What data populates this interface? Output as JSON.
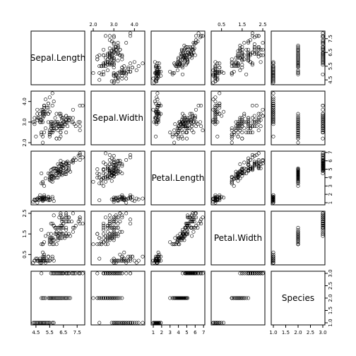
{
  "chart_data": {
    "type": "scatter",
    "kind": "scatterplot-matrix",
    "title": "",
    "grid": false,
    "variables": [
      {
        "name": "Sepal.Length",
        "range": [
          4.3,
          7.9
        ],
        "ticks": [
          {
            "v": 4.5,
            "label": "4.5"
          },
          {
            "v": 5.5,
            "label": "5.5"
          },
          {
            "v": 6.5,
            "label": "6.5"
          },
          {
            "v": 7.5,
            "label": "7.5"
          }
        ]
      },
      {
        "name": "Sepal.Width",
        "range": [
          2.0,
          4.4
        ],
        "ticks": [
          {
            "v": 2.0,
            "label": "2.0"
          },
          {
            "v": 3.0,
            "label": "3.0"
          },
          {
            "v": 4.0,
            "label": "4.0"
          }
        ]
      },
      {
        "name": "Petal.Length",
        "range": [
          1.0,
          6.9
        ],
        "ticks": [
          {
            "v": 1,
            "label": "1"
          },
          {
            "v": 2,
            "label": "2"
          },
          {
            "v": 3,
            "label": "3"
          },
          {
            "v": 4,
            "label": "4"
          },
          {
            "v": 5,
            "label": "5"
          },
          {
            "v": 6,
            "label": "6"
          },
          {
            "v": 7,
            "label": "7"
          }
        ]
      },
      {
        "name": "Petal.Width",
        "range": [
          0.1,
          2.5
        ],
        "ticks": [
          {
            "v": 0.5,
            "label": "0.5"
          },
          {
            "v": 1.5,
            "label": "1.5"
          },
          {
            "v": 2.5,
            "label": "2.5"
          }
        ]
      },
      {
        "name": "Species",
        "range": [
          1,
          3
        ],
        "ticks": [
          {
            "v": 1.0,
            "label": "1.0"
          },
          {
            "v": 1.5,
            "label": "1.5"
          },
          {
            "v": 2.0,
            "label": "2.0"
          },
          {
            "v": 2.5,
            "label": "2.5"
          },
          {
            "v": 3.0,
            "label": "3.0"
          }
        ]
      }
    ],
    "observations": [
      [
        5.1,
        3.5,
        1.4,
        0.2,
        1
      ],
      [
        4.9,
        3.0,
        1.4,
        0.2,
        1
      ],
      [
        4.7,
        3.2,
        1.3,
        0.2,
        1
      ],
      [
        4.6,
        3.1,
        1.5,
        0.2,
        1
      ],
      [
        5.0,
        3.6,
        1.4,
        0.2,
        1
      ],
      [
        5.4,
        3.9,
        1.7,
        0.4,
        1
      ],
      [
        4.6,
        3.4,
        1.4,
        0.3,
        1
      ],
      [
        5.0,
        3.4,
        1.5,
        0.2,
        1
      ],
      [
        4.4,
        2.9,
        1.4,
        0.2,
        1
      ],
      [
        4.9,
        3.1,
        1.5,
        0.1,
        1
      ],
      [
        5.4,
        3.7,
        1.5,
        0.2,
        1
      ],
      [
        4.8,
        3.4,
        1.6,
        0.2,
        1
      ],
      [
        4.8,
        3.0,
        1.4,
        0.1,
        1
      ],
      [
        4.3,
        3.0,
        1.1,
        0.1,
        1
      ],
      [
        5.8,
        4.0,
        1.2,
        0.2,
        1
      ],
      [
        5.7,
        4.4,
        1.5,
        0.4,
        1
      ],
      [
        5.4,
        3.9,
        1.3,
        0.4,
        1
      ],
      [
        5.1,
        3.5,
        1.4,
        0.3,
        1
      ],
      [
        5.7,
        3.8,
        1.7,
        0.3,
        1
      ],
      [
        5.1,
        3.8,
        1.5,
        0.3,
        1
      ],
      [
        5.4,
        3.4,
        1.7,
        0.2,
        1
      ],
      [
        5.1,
        3.7,
        1.5,
        0.4,
        1
      ],
      [
        4.6,
        3.6,
        1.0,
        0.2,
        1
      ],
      [
        5.1,
        3.3,
        1.7,
        0.5,
        1
      ],
      [
        4.8,
        3.4,
        1.9,
        0.2,
        1
      ],
      [
        5.0,
        3.0,
        1.6,
        0.2,
        1
      ],
      [
        5.0,
        3.4,
        1.6,
        0.4,
        1
      ],
      [
        5.2,
        3.5,
        1.5,
        0.2,
        1
      ],
      [
        5.2,
        3.4,
        1.4,
        0.2,
        1
      ],
      [
        4.7,
        3.2,
        1.6,
        0.2,
        1
      ],
      [
        4.8,
        3.1,
        1.6,
        0.2,
        1
      ],
      [
        5.4,
        3.4,
        1.5,
        0.4,
        1
      ],
      [
        5.2,
        4.1,
        1.5,
        0.1,
        1
      ],
      [
        5.5,
        4.2,
        1.4,
        0.2,
        1
      ],
      [
        4.9,
        3.1,
        1.5,
        0.2,
        1
      ],
      [
        5.0,
        3.2,
        1.2,
        0.2,
        1
      ],
      [
        5.5,
        3.5,
        1.3,
        0.2,
        1
      ],
      [
        4.9,
        3.6,
        1.4,
        0.1,
        1
      ],
      [
        4.4,
        3.0,
        1.3,
        0.2,
        1
      ],
      [
        5.1,
        3.4,
        1.5,
        0.2,
        1
      ],
      [
        5.0,
        3.5,
        1.3,
        0.3,
        1
      ],
      [
        4.5,
        2.3,
        1.3,
        0.3,
        1
      ],
      [
        4.4,
        3.2,
        1.3,
        0.2,
        1
      ],
      [
        5.0,
        3.5,
        1.6,
        0.6,
        1
      ],
      [
        5.1,
        3.8,
        1.9,
        0.4,
        1
      ],
      [
        4.8,
        3.0,
        1.4,
        0.3,
        1
      ],
      [
        5.1,
        3.8,
        1.6,
        0.2,
        1
      ],
      [
        4.6,
        3.2,
        1.4,
        0.2,
        1
      ],
      [
        5.3,
        3.7,
        1.5,
        0.2,
        1
      ],
      [
        5.0,
        3.3,
        1.4,
        0.2,
        1
      ],
      [
        7.0,
        3.2,
        4.7,
        1.4,
        2
      ],
      [
        6.4,
        3.2,
        4.5,
        1.5,
        2
      ],
      [
        6.9,
        3.1,
        4.9,
        1.5,
        2
      ],
      [
        5.5,
        2.3,
        4.0,
        1.3,
        2
      ],
      [
        6.5,
        2.8,
        4.6,
        1.5,
        2
      ],
      [
        5.7,
        2.8,
        4.5,
        1.3,
        2
      ],
      [
        6.3,
        3.3,
        4.7,
        1.6,
        2
      ],
      [
        4.9,
        2.4,
        3.3,
        1.0,
        2
      ],
      [
        6.6,
        2.9,
        4.6,
        1.3,
        2
      ],
      [
        5.2,
        2.7,
        3.9,
        1.4,
        2
      ],
      [
        5.0,
        2.0,
        3.5,
        1.0,
        2
      ],
      [
        5.9,
        3.0,
        4.2,
        1.5,
        2
      ],
      [
        6.0,
        2.2,
        4.0,
        1.0,
        2
      ],
      [
        6.1,
        2.9,
        4.7,
        1.4,
        2
      ],
      [
        5.6,
        2.9,
        3.6,
        1.3,
        2
      ],
      [
        6.7,
        3.1,
        4.4,
        1.4,
        2
      ],
      [
        5.6,
        3.0,
        4.5,
        1.5,
        2
      ],
      [
        5.8,
        2.7,
        4.1,
        1.0,
        2
      ],
      [
        6.2,
        2.2,
        4.5,
        1.5,
        2
      ],
      [
        5.6,
        2.5,
        3.9,
        1.1,
        2
      ],
      [
        5.9,
        3.2,
        4.8,
        1.8,
        2
      ],
      [
        6.1,
        2.8,
        4.0,
        1.3,
        2
      ],
      [
        6.3,
        2.5,
        4.9,
        1.5,
        2
      ],
      [
        6.1,
        2.8,
        4.7,
        1.2,
        2
      ],
      [
        6.4,
        2.9,
        4.3,
        1.3,
        2
      ],
      [
        6.6,
        3.0,
        4.4,
        1.4,
        2
      ],
      [
        6.8,
        2.8,
        4.8,
        1.4,
        2
      ],
      [
        6.7,
        3.0,
        5.0,
        1.7,
        2
      ],
      [
        6.0,
        2.9,
        4.5,
        1.5,
        2
      ],
      [
        5.7,
        2.6,
        3.5,
        1.0,
        2
      ],
      [
        5.5,
        2.4,
        3.8,
        1.1,
        2
      ],
      [
        5.5,
        2.4,
        3.7,
        1.0,
        2
      ],
      [
        5.8,
        2.7,
        3.9,
        1.2,
        2
      ],
      [
        6.0,
        2.7,
        5.1,
        1.6,
        2
      ],
      [
        5.4,
        3.0,
        4.5,
        1.5,
        2
      ],
      [
        6.0,
        3.4,
        4.5,
        1.6,
        2
      ],
      [
        6.7,
        3.1,
        4.7,
        1.5,
        2
      ],
      [
        6.3,
        2.3,
        4.4,
        1.3,
        2
      ],
      [
        5.6,
        3.0,
        4.1,
        1.3,
        2
      ],
      [
        5.5,
        2.5,
        4.0,
        1.3,
        2
      ],
      [
        5.5,
        2.6,
        4.4,
        1.2,
        2
      ],
      [
        6.1,
        3.0,
        4.6,
        1.4,
        2
      ],
      [
        5.8,
        2.6,
        4.0,
        1.2,
        2
      ],
      [
        5.0,
        2.3,
        3.3,
        1.0,
        2
      ],
      [
        5.6,
        2.7,
        4.2,
        1.3,
        2
      ],
      [
        5.7,
        3.0,
        4.2,
        1.2,
        2
      ],
      [
        5.7,
        2.9,
        4.2,
        1.3,
        2
      ],
      [
        6.2,
        2.9,
        4.3,
        1.3,
        2
      ],
      [
        5.1,
        2.5,
        3.0,
        1.1,
        2
      ],
      [
        5.7,
        2.8,
        4.1,
        1.3,
        2
      ],
      [
        6.3,
        3.3,
        6.0,
        2.5,
        3
      ],
      [
        5.8,
        2.7,
        5.1,
        1.9,
        3
      ],
      [
        7.1,
        3.0,
        5.9,
        2.1,
        3
      ],
      [
        6.3,
        2.9,
        5.6,
        1.8,
        3
      ],
      [
        6.5,
        3.0,
        5.8,
        2.2,
        3
      ],
      [
        7.6,
        3.0,
        6.6,
        2.1,
        3
      ],
      [
        4.9,
        2.5,
        4.5,
        1.7,
        3
      ],
      [
        7.3,
        2.9,
        6.3,
        1.8,
        3
      ],
      [
        6.7,
        2.5,
        5.8,
        1.8,
        3
      ],
      [
        7.2,
        3.6,
        6.1,
        2.5,
        3
      ],
      [
        6.5,
        3.2,
        5.1,
        2.0,
        3
      ],
      [
        6.4,
        2.7,
        5.3,
        1.9,
        3
      ],
      [
        6.8,
        3.0,
        5.5,
        2.1,
        3
      ],
      [
        5.7,
        2.5,
        5.0,
        2.0,
        3
      ],
      [
        5.8,
        2.8,
        5.1,
        2.4,
        3
      ],
      [
        6.4,
        3.2,
        5.3,
        2.3,
        3
      ],
      [
        6.5,
        3.0,
        5.5,
        1.8,
        3
      ],
      [
        7.7,
        3.8,
        6.7,
        2.2,
        3
      ],
      [
        7.7,
        2.6,
        6.9,
        2.3,
        3
      ],
      [
        6.0,
        2.2,
        5.0,
        1.5,
        3
      ],
      [
        6.9,
        3.2,
        5.7,
        2.3,
        3
      ],
      [
        5.6,
        2.8,
        4.9,
        2.0,
        3
      ],
      [
        7.7,
        2.8,
        6.7,
        2.0,
        3
      ],
      [
        6.3,
        2.7,
        4.9,
        1.8,
        3
      ],
      [
        6.7,
        3.3,
        5.7,
        2.1,
        3
      ],
      [
        7.2,
        3.2,
        6.0,
        1.8,
        3
      ],
      [
        6.2,
        2.8,
        4.8,
        1.8,
        3
      ],
      [
        6.1,
        3.0,
        4.9,
        1.8,
        3
      ],
      [
        6.4,
        2.8,
        5.6,
        2.1,
        3
      ],
      [
        7.2,
        3.0,
        5.8,
        1.6,
        3
      ],
      [
        7.4,
        2.8,
        6.1,
        1.9,
        3
      ],
      [
        7.9,
        3.8,
        6.4,
        2.0,
        3
      ],
      [
        6.4,
        2.8,
        5.6,
        2.2,
        3
      ],
      [
        6.3,
        2.8,
        5.1,
        1.5,
        3
      ],
      [
        6.1,
        2.6,
        5.6,
        1.4,
        3
      ],
      [
        7.7,
        3.0,
        6.1,
        2.3,
        3
      ],
      [
        6.3,
        3.4,
        5.6,
        2.4,
        3
      ],
      [
        6.4,
        3.1,
        5.5,
        1.8,
        3
      ],
      [
        6.0,
        3.0,
        4.8,
        1.8,
        3
      ],
      [
        6.9,
        3.1,
        5.4,
        2.1,
        3
      ],
      [
        6.7,
        3.1,
        5.6,
        2.4,
        3
      ],
      [
        6.9,
        3.1,
        5.1,
        2.3,
        3
      ],
      [
        5.8,
        2.7,
        5.1,
        1.9,
        3
      ],
      [
        6.8,
        3.2,
        5.9,
        2.3,
        3
      ],
      [
        6.7,
        3.3,
        5.7,
        2.5,
        3
      ],
      [
        6.7,
        3.0,
        5.2,
        2.3,
        3
      ],
      [
        6.3,
        2.5,
        5.0,
        1.9,
        3
      ],
      [
        6.5,
        3.0,
        5.2,
        2.0,
        3
      ],
      [
        6.2,
        3.4,
        5.4,
        2.3,
        3
      ],
      [
        5.9,
        3.0,
        5.1,
        1.8,
        3
      ]
    ]
  }
}
